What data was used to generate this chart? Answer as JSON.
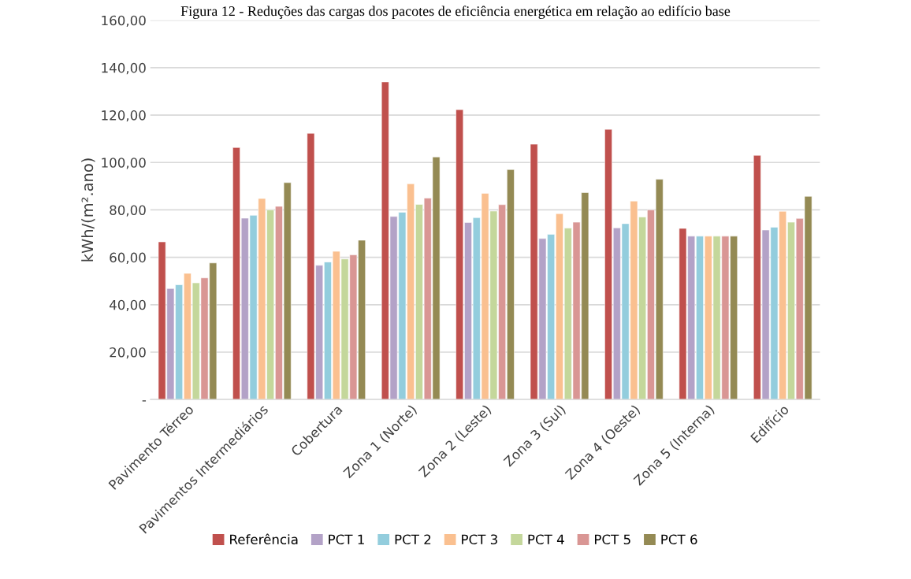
{
  "chart_data": {
    "type": "bar",
    "title": "Figura 12 - Reduções das cargas dos pacotes de eficiência energética em relação ao edifício base",
    "ylabel": "kWh/(m².ano)",
    "categories": [
      "Pavimento Térreo",
      "Pavimentos Intermediários",
      "Cobertura",
      "Zona 1 (Norte)",
      "Zona 2 (Leste)",
      "Zona 3 (Sul)",
      "Zona 4 (Oeste)",
      "Zona 5 (Interna)",
      "Edifício"
    ],
    "series": [
      {
        "name": "Referência",
        "color": "#c0504d",
        "values": [
          66.5,
          106.3,
          112.3,
          134,
          122.3,
          107.7,
          114,
          72.2,
          103
        ]
      },
      {
        "name": "PCT 1",
        "color": "#b3a2c7",
        "values": [
          46.8,
          76.5,
          56.6,
          77.2,
          74.7,
          67.9,
          72.4,
          68.9,
          71.5
        ]
      },
      {
        "name": "PCT 2",
        "color": "#93cddd",
        "values": [
          48.4,
          77.7,
          58,
          79,
          76.7,
          69.7,
          74.2,
          68.9,
          72.7
        ]
      },
      {
        "name": "PCT 3",
        "color": "#fac090",
        "values": [
          53.2,
          84.8,
          62.5,
          91,
          87,
          78.4,
          83.7,
          68.9,
          79.4
        ]
      },
      {
        "name": "PCT 4",
        "color": "#c4d79b",
        "values": [
          49.2,
          80,
          59.3,
          82.3,
          79.5,
          72.3,
          77,
          68.9,
          74.8
        ]
      },
      {
        "name": "PCT 5",
        "color": "#d99694",
        "values": [
          51.3,
          81.5,
          61,
          85,
          82.2,
          74.8,
          80,
          68.9,
          76.4
        ]
      },
      {
        "name": "PCT 6",
        "color": "#948a54",
        "values": [
          57.6,
          91.5,
          67.2,
          102.3,
          97,
          87.3,
          92.9,
          68.9,
          85.7
        ]
      }
    ],
    "ylim": [
      0,
      160
    ],
    "yticks": [
      {
        "value": 0,
        "label": "-"
      },
      {
        "value": 20,
        "label": "20,00"
      },
      {
        "value": 40,
        "label": "40,00"
      },
      {
        "value": 60,
        "label": "60,00"
      },
      {
        "value": 80,
        "label": "80,00"
      },
      {
        "value": 100,
        "label": "100,00"
      },
      {
        "value": 120,
        "label": "120,00"
      },
      {
        "value": 140,
        "label": "140,00"
      },
      {
        "value": 160,
        "label": "160,00"
      }
    ],
    "grid": "y",
    "legend": "bottom"
  }
}
